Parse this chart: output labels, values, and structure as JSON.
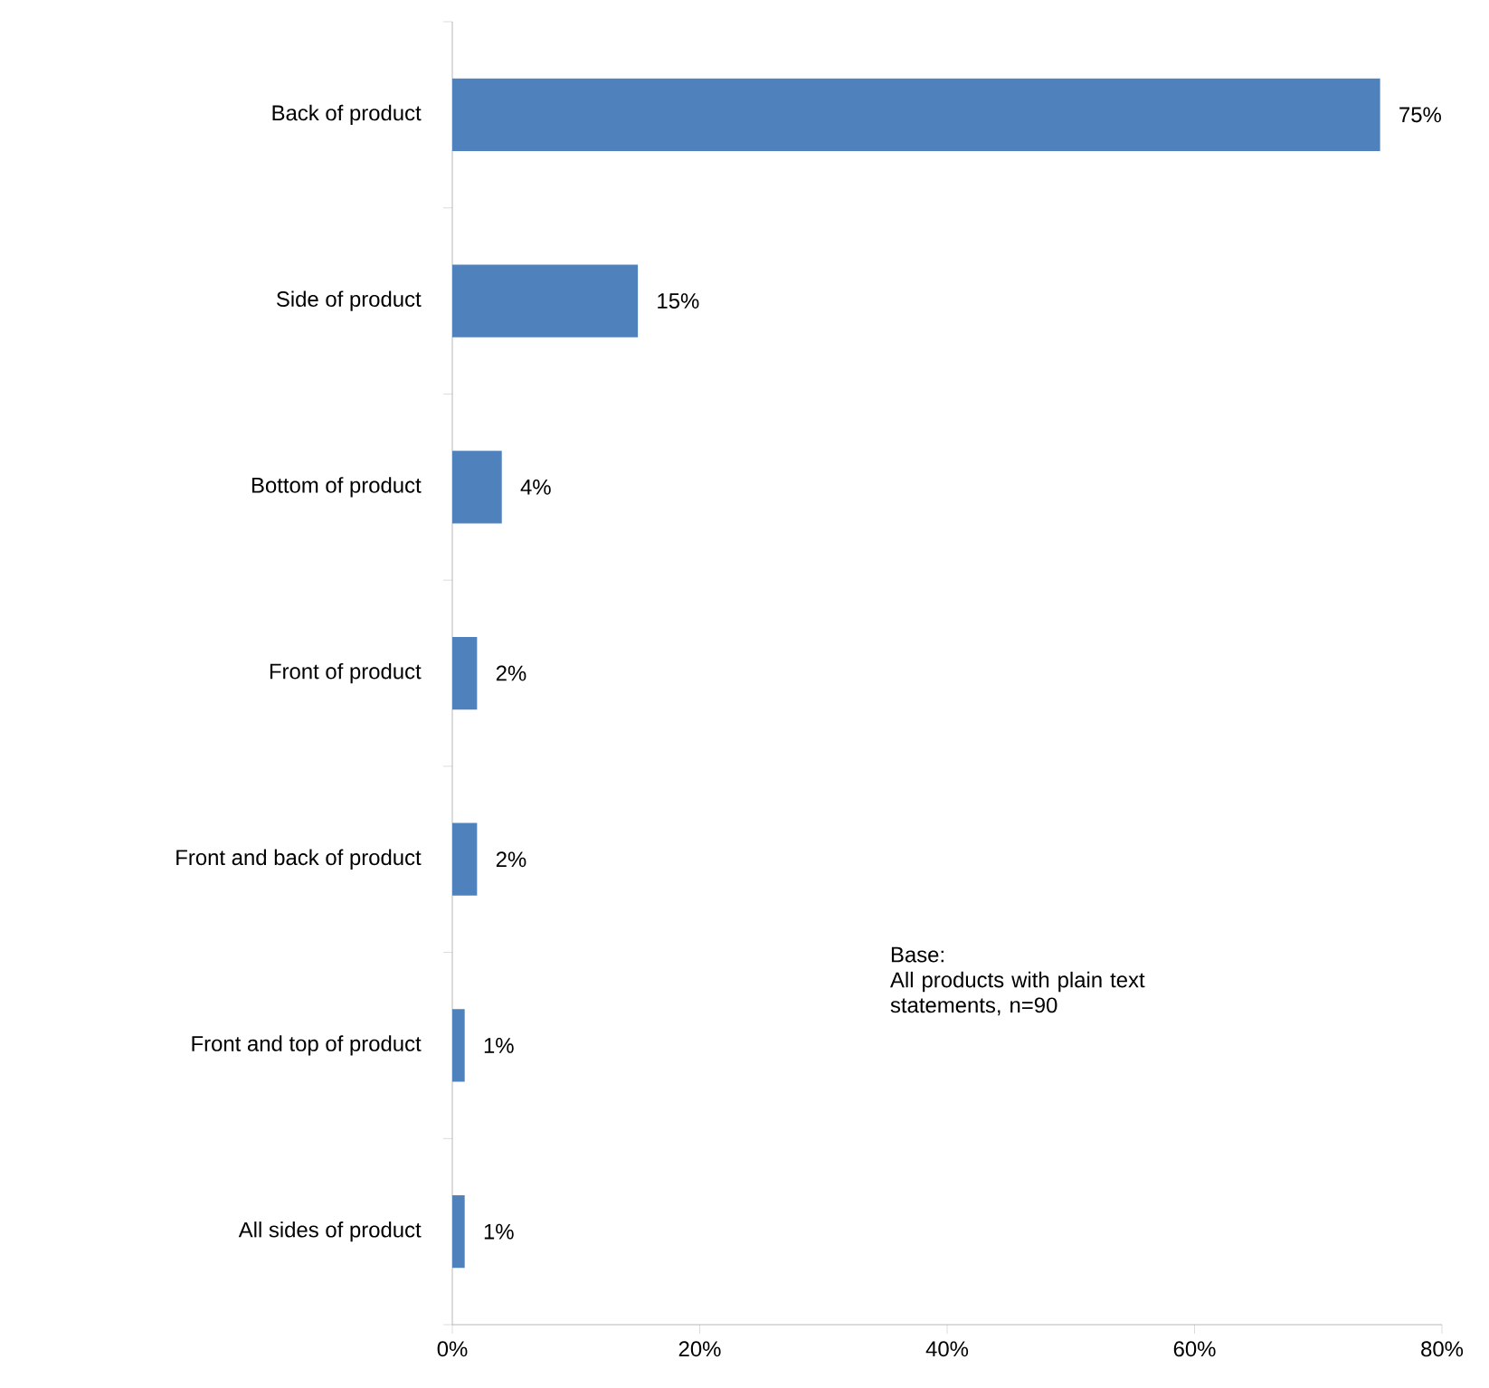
{
  "chart_data": {
    "type": "bar",
    "orientation": "horizontal",
    "categories": [
      "Back of product",
      "Side of product",
      "Bottom of product",
      "Front of product",
      "Front and back of product",
      "Front and top of product",
      "All sides of product"
    ],
    "values": [
      75,
      15,
      4,
      2,
      2,
      1,
      1
    ],
    "value_labels": [
      "75%",
      "15%",
      "4%",
      "2%",
      "2%",
      "1%",
      "1%"
    ],
    "color": "#4f81bd",
    "xlim": [
      0,
      80
    ],
    "xticks": [
      {
        "value": 0,
        "label": "0%"
      },
      {
        "value": 20,
        "label": "20%"
      },
      {
        "value": 40,
        "label": "40%"
      },
      {
        "value": 60,
        "label": "60%"
      },
      {
        "value": 80,
        "label": "80%"
      }
    ],
    "grid": false,
    "annotations": [
      "Base:",
      "All products with plain text statements, n=90"
    ]
  }
}
